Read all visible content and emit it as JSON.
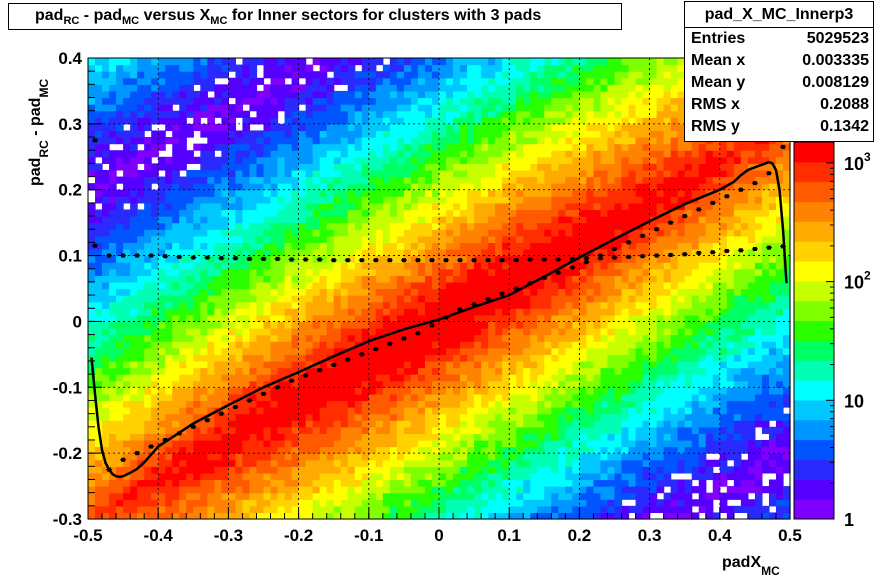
{
  "title": {
    "parts": [
      {
        "text": "pad",
        "sub": "RC"
      },
      {
        "text": " - pad",
        "sub": "MC"
      },
      {
        "text": " versus X",
        "sub": "MC"
      },
      {
        "text": " for Inner sectors for clusters with 3 pads",
        "sub": ""
      }
    ]
  },
  "stats": {
    "name": "pad_X_MC_Innerp3",
    "rows": [
      {
        "label": "Entries",
        "value": "5029523"
      },
      {
        "label": "Mean x",
        "value": "0.003335"
      },
      {
        "label": "Mean y",
        "value": "0.008129"
      },
      {
        "label": "RMS x",
        "value": "0.2088"
      },
      {
        "label": "RMS y",
        "value": "0.1342"
      }
    ]
  },
  "colors": {
    "palette": [
      "#7f00ff",
      "#5500ff",
      "#2a2aff",
      "#0055ff",
      "#0096ff",
      "#00c8ff",
      "#00ffff",
      "#00ffb4",
      "#00ff64",
      "#2aff00",
      "#7fff00",
      "#c8ff00",
      "#ffff00",
      "#ffd200",
      "#ffaa00",
      "#ff8200",
      "#ff5a00",
      "#ff2d00",
      "#ff0000"
    ],
    "profile": "#000000",
    "fit_line": "#000000"
  },
  "chart_data": {
    "type": "heatmap",
    "xlabel": {
      "text": "padX",
      "sub": "MC"
    },
    "ylabel": {
      "text": "pad",
      "sub1": "RC",
      "mid": " - pad",
      "sub2": "MC"
    },
    "xlim": [
      -0.5,
      0.5
    ],
    "ylim": [
      -0.3,
      0.4
    ],
    "xticks": [
      "-0.5",
      "-0.4",
      "-0.3",
      "-0.2",
      "-0.1",
      "0",
      "0.1",
      "0.2",
      "0.3",
      "0.4",
      "0.5"
    ],
    "yticks": [
      "-0.3",
      "-0.2",
      "-0.1",
      "0",
      "0.1",
      "0.2",
      "0.3",
      "0.4"
    ],
    "grid": true,
    "z_scale": "log",
    "z_range": [
      1,
      1500
    ],
    "z_tick_labels": [
      {
        "value": 1,
        "label": "1"
      },
      {
        "value": 10,
        "label": "10"
      },
      {
        "value": 100,
        "label": "10",
        "exp": "2"
      },
      {
        "value": 1000,
        "label": "10",
        "exp": "3"
      }
    ],
    "density_description": {
      "core_slope": 0.6,
      "band_repeat": 1.0,
      "peak_counts": 1400
    },
    "series": [
      {
        "kind": "profile_sloped",
        "x": [
          -0.49,
          -0.47,
          -0.45,
          -0.43,
          -0.41,
          -0.39,
          -0.37,
          -0.35,
          -0.33,
          -0.31,
          -0.29,
          -0.27,
          -0.25,
          -0.23,
          -0.21,
          -0.19,
          -0.17,
          -0.15,
          -0.13,
          -0.11,
          -0.09,
          -0.07,
          -0.05,
          -0.03,
          -0.01,
          0.01,
          0.03,
          0.05,
          0.07,
          0.09,
          0.11,
          0.13,
          0.15,
          0.17,
          0.19,
          0.21,
          0.23,
          0.25,
          0.27,
          0.29,
          0.31,
          0.33,
          0.35,
          0.37,
          0.39,
          0.41,
          0.43,
          0.45,
          0.47,
          0.49
        ],
        "y": [
          0.275,
          -0.225,
          -0.21,
          -0.2,
          -0.19,
          -0.18,
          -0.17,
          -0.16,
          -0.15,
          -0.14,
          -0.13,
          -0.12,
          -0.11,
          -0.1,
          -0.09,
          -0.082,
          -0.074,
          -0.066,
          -0.058,
          -0.05,
          -0.042,
          -0.034,
          -0.026,
          -0.018,
          -0.006,
          0.006,
          0.018,
          0.026,
          0.034,
          0.042,
          0.05,
          0.058,
          0.066,
          0.074,
          0.082,
          0.09,
          0.1,
          0.11,
          0.12,
          0.13,
          0.14,
          0.15,
          0.16,
          0.17,
          0.18,
          0.19,
          0.2,
          0.21,
          0.225,
          0.265
        ]
      },
      {
        "kind": "profile_flat",
        "x": [
          -0.49,
          -0.47,
          -0.45,
          -0.43,
          -0.41,
          -0.39,
          -0.37,
          -0.35,
          -0.33,
          -0.31,
          -0.29,
          -0.27,
          -0.25,
          -0.23,
          -0.21,
          -0.19,
          -0.17,
          -0.15,
          -0.13,
          -0.11,
          -0.09,
          -0.07,
          -0.05,
          -0.03,
          -0.01,
          0.01,
          0.03,
          0.05,
          0.07,
          0.09,
          0.11,
          0.13,
          0.15,
          0.17,
          0.19,
          0.21,
          0.23,
          0.25,
          0.27,
          0.29,
          0.31,
          0.33,
          0.35,
          0.37,
          0.39,
          0.41,
          0.43,
          0.45,
          0.47,
          0.49
        ],
        "y": [
          0.115,
          0.1,
          0.1,
          0.1,
          0.1,
          0.099,
          0.098,
          0.097,
          0.097,
          0.096,
          0.096,
          0.095,
          0.095,
          0.095,
          0.094,
          0.094,
          0.094,
          0.093,
          0.093,
          0.093,
          0.093,
          0.093,
          0.093,
          0.093,
          0.093,
          0.093,
          0.093,
          0.093,
          0.093,
          0.093,
          0.093,
          0.094,
          0.094,
          0.094,
          0.095,
          0.096,
          0.096,
          0.097,
          0.098,
          0.099,
          0.1,
          0.101,
          0.102,
          0.104,
          0.105,
          0.107,
          0.108,
          0.11,
          0.112,
          0.114
        ]
      },
      {
        "kind": "fit_curve",
        "x": [
          -0.495,
          -0.49,
          -0.485,
          -0.48,
          -0.475,
          -0.47,
          -0.465,
          -0.46,
          -0.455,
          -0.45,
          -0.44,
          -0.43,
          -0.42,
          -0.4,
          -0.35,
          -0.3,
          -0.25,
          -0.2,
          -0.15,
          -0.1,
          -0.05,
          0,
          0.05,
          0.1,
          0.15,
          0.2,
          0.25,
          0.3,
          0.35,
          0.4,
          0.42,
          0.43,
          0.44,
          0.45,
          0.455,
          0.46,
          0.465,
          0.47,
          0.475,
          0.48,
          0.485,
          0.49,
          0.495
        ],
        "y": [
          -0.055,
          -0.11,
          -0.16,
          -0.195,
          -0.215,
          -0.225,
          -0.232,
          -0.235,
          -0.236,
          -0.235,
          -0.23,
          -0.224,
          -0.214,
          -0.19,
          -0.155,
          -0.127,
          -0.1,
          -0.077,
          -0.053,
          -0.03,
          -0.012,
          0.003,
          0.022,
          0.04,
          0.068,
          0.097,
          0.125,
          0.152,
          0.178,
          0.2,
          0.212,
          0.222,
          0.23,
          0.234,
          0.236,
          0.238,
          0.24,
          0.242,
          0.24,
          0.23,
          0.2,
          0.14,
          0.058
        ]
      }
    ]
  }
}
